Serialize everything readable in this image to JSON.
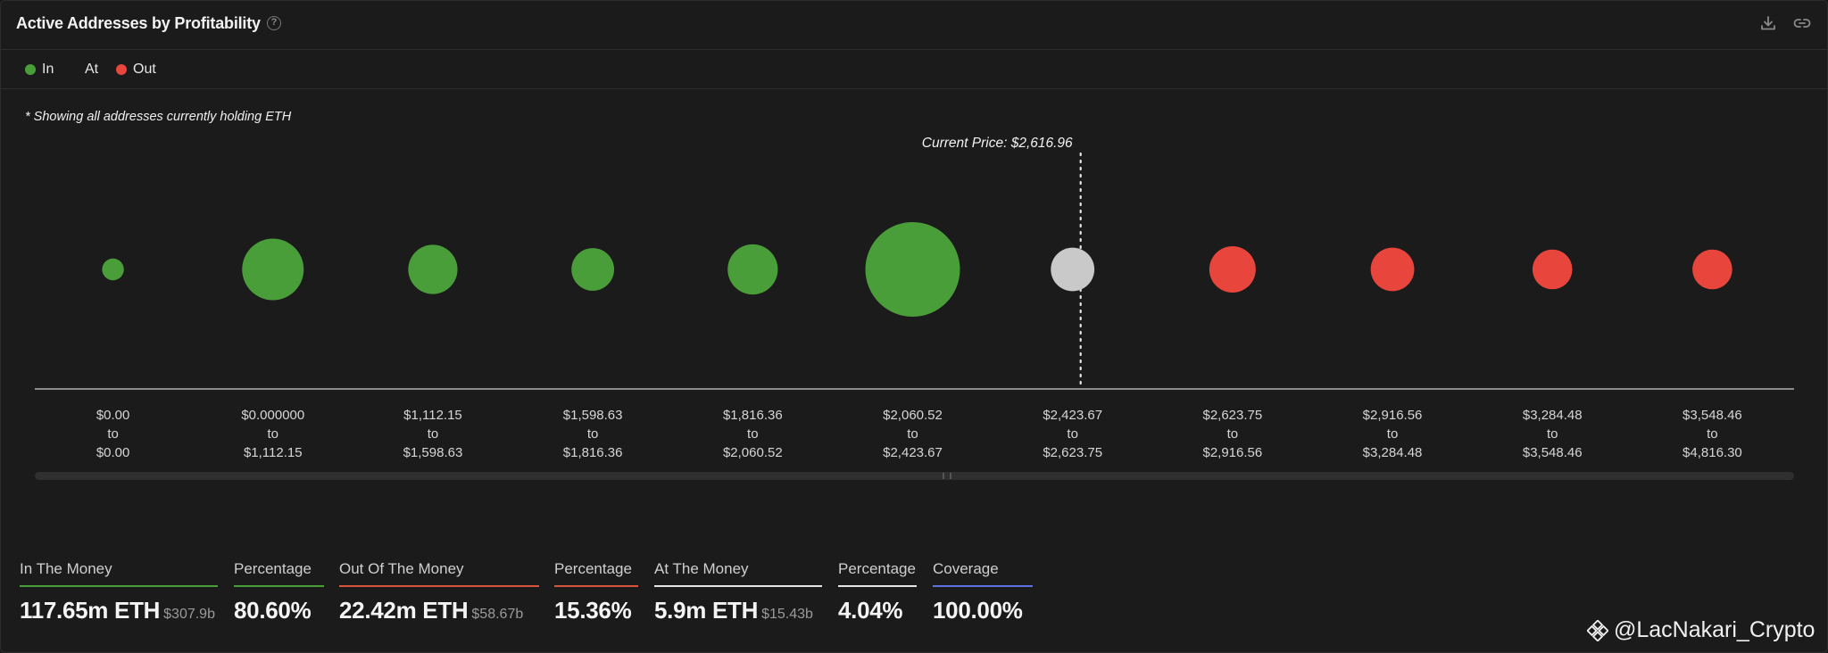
{
  "header": {
    "title": "Active Addresses by Profitability",
    "help_glyph": "?"
  },
  "legend": [
    {
      "label": "In",
      "color": "#4a9e3a"
    },
    {
      "label": "At",
      "color": ""
    },
    {
      "label": "Out",
      "color": "#e8453c"
    }
  ],
  "note": "* Showing all addresses currently holding ETH",
  "chart_data": {
    "type": "scatter",
    "annotation": "Current Price: $2,616.96",
    "categories": [
      {
        "from": "$0.00",
        "to": "$0.00",
        "status": "in",
        "relative_size": 0.23
      },
      {
        "from": "$0.000000",
        "to": "$1,112.15",
        "status": "in",
        "relative_size": 0.65
      },
      {
        "from": "$1,112.15",
        "to": "$1,598.63",
        "status": "in",
        "relative_size": 0.52
      },
      {
        "from": "$1,598.63",
        "to": "$1,816.36",
        "status": "in",
        "relative_size": 0.45
      },
      {
        "from": "$1,816.36",
        "to": "$2,060.52",
        "status": "in",
        "relative_size": 0.53
      },
      {
        "from": "$2,060.52",
        "to": "$2,423.67",
        "status": "in",
        "relative_size": 1.0
      },
      {
        "from": "$2,423.67",
        "to": "$2,623.75",
        "status": "at",
        "relative_size": 0.46
      },
      {
        "from": "$2,623.75",
        "to": "$2,916.56",
        "status": "out",
        "relative_size": 0.49
      },
      {
        "from": "$2,916.56",
        "to": "$3,284.48",
        "status": "out",
        "relative_size": 0.46
      },
      {
        "from": "$3,284.48",
        "to": "$3,548.46",
        "status": "out",
        "relative_size": 0.42
      },
      {
        "from": "$3,548.46",
        "to": "$4,816.30",
        "status": "out",
        "relative_size": 0.42
      }
    ],
    "range_joiner": "to",
    "colors": {
      "in": "#4a9e3a",
      "at": "#c9c9c9",
      "out": "#e8453c"
    }
  },
  "stats": [
    {
      "label": "In The Money",
      "value": "117.65m ETH",
      "sub": "$307.9b",
      "color": "#4a9e3a"
    },
    {
      "label": "Percentage",
      "value": "80.60%",
      "sub": "",
      "color": "#4a9e3a"
    },
    {
      "label": "Out Of The Money",
      "value": "22.42m ETH",
      "sub": "$58.67b",
      "color": "#d8543a"
    },
    {
      "label": "Percentage",
      "value": "15.36%",
      "sub": "",
      "color": "#d8543a"
    },
    {
      "label": "At The Money",
      "value": "5.9m ETH",
      "sub": "$15.43b",
      "color": "#e6e6e6"
    },
    {
      "label": "Percentage",
      "value": "4.04%",
      "sub": "",
      "color": "#e6e6e6"
    },
    {
      "label": "Coverage",
      "value": "100.00%",
      "sub": "",
      "color": "#5b72e0"
    }
  ],
  "watermark": "@LacNakari_Crypto"
}
